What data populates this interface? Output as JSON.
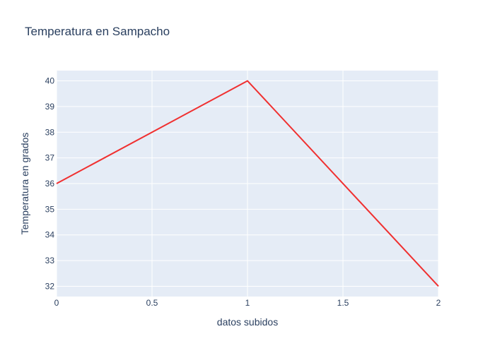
{
  "chart_data": {
    "type": "line",
    "title": "Temperatura en Sampacho",
    "xlabel": "datos subidos",
    "ylabel": "Temperatura en grados",
    "x": [
      0,
      1,
      2
    ],
    "series": [
      {
        "values": [
          36,
          40,
          32
        ]
      }
    ],
    "xlim": [
      0,
      2
    ],
    "ylim": [
      31.6,
      40.4
    ],
    "x_ticks": [
      0,
      0.5,
      1,
      1.5,
      2
    ],
    "x_tick_labels": [
      "0",
      "0.5",
      "1",
      "1.5",
      "2"
    ],
    "y_ticks": [
      32,
      33,
      34,
      35,
      36,
      37,
      38,
      39,
      40
    ],
    "y_tick_labels": [
      "32",
      "33",
      "34",
      "35",
      "36",
      "37",
      "38",
      "39",
      "40"
    ],
    "grid": true,
    "colors": {
      "plot_background": "#e5ecf6",
      "grid": "#ffffff",
      "line": "#f03030",
      "text": "#2a3f5f"
    }
  }
}
